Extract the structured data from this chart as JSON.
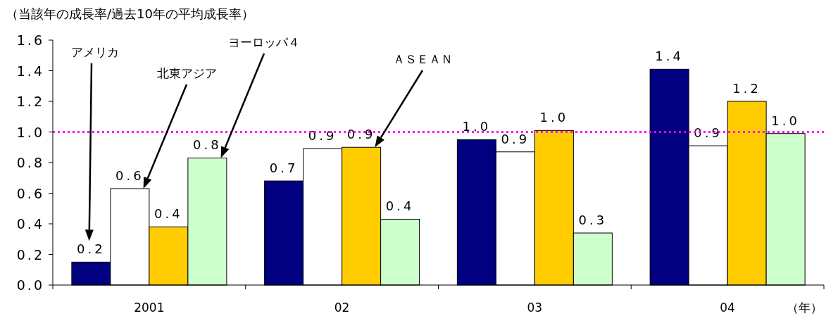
{
  "chart_data": {
    "type": "bar",
    "ylabel": "（当該年の成長率/過去10年の平均成長率）",
    "xlabel": "（年）",
    "categories": [
      "2001",
      "02",
      "03",
      "04"
    ],
    "series": [
      {
        "color": "#000080",
        "values": [
          0.15,
          0.68,
          0.95,
          1.41
        ],
        "value_labels": [
          "0.2",
          "0.7",
          "1.0",
          "1.4"
        ]
      },
      {
        "color": "#ffffff",
        "values": [
          0.63,
          0.89,
          0.87,
          0.91
        ],
        "value_labels": [
          "0.6",
          "0.9",
          "0.9",
          "0.9"
        ]
      },
      {
        "color": "#ffcc00",
        "values": [
          0.38,
          0.9,
          1.01,
          1.2
        ],
        "value_labels": [
          "0.4",
          "0.9",
          "1.0",
          "1.2"
        ]
      },
      {
        "color": "#ccffcc",
        "values": [
          0.83,
          0.43,
          0.34,
          0.99
        ],
        "value_labels": [
          "0.8",
          "0.4",
          "0.3",
          "1.0"
        ]
      }
    ],
    "ylim": [
      0,
      1.6
    ],
    "yticks": [
      {
        "value": 0,
        "label": "0.0"
      },
      {
        "value": 0.2,
        "label": "0.2"
      },
      {
        "value": 0.4,
        "label": "0.4"
      },
      {
        "value": 0.6,
        "label": "0.6"
      },
      {
        "value": 0.8,
        "label": "0.8"
      },
      {
        "value": 1.0,
        "label": "1.0"
      },
      {
        "value": 1.2,
        "label": "1.2"
      },
      {
        "value": 1.4,
        "label": "1.4"
      },
      {
        "value": 1.6,
        "label": "1.6"
      }
    ],
    "ref_lines": [
      {
        "axis": "y",
        "value": 1.0,
        "color": "#ff00ff",
        "line_style": "dotted"
      }
    ],
    "annotations": [
      "アメリカ",
      "北東アジア",
      "ＡＳＥＡＮ",
      "ヨーロッパ４"
    ]
  }
}
